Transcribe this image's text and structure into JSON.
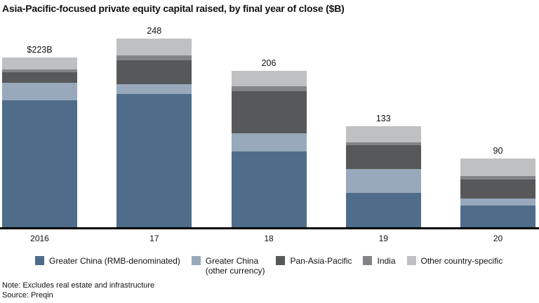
{
  "title": "Asia-Pacific-focused private equity capital raised, by final year of close ($B)",
  "note": "Note: Excludes real estate and infrastructure",
  "source": "Source: Preqin",
  "colors": {
    "rmb": "#4f6d8a",
    "other_currency": "#97a9ba",
    "pan_asia_pacific": "#57585a",
    "india": "#828487",
    "other_country": "#bfc0c2",
    "axis": "#000000"
  },
  "chart_data": {
    "type": "bar",
    "stacked": true,
    "title": "Asia-Pacific-focused private equity capital raised, by final year of close ($B)",
    "categories": [
      "2016",
      "17",
      "18",
      "19",
      "20"
    ],
    "totals": [
      223,
      248,
      206,
      133,
      90
    ],
    "totals_labels": [
      "$223B",
      "248",
      "206",
      "133",
      "90"
    ],
    "series": [
      {
        "name": "Greater China (RMB-denominated)",
        "color_key": "rmb",
        "values": [
          167,
          175,
          100,
          45,
          29
        ]
      },
      {
        "name": "Greater China (other currency)",
        "color_key": "other_currency",
        "values": [
          23,
          13,
          24,
          32,
          9
        ]
      },
      {
        "name": "Pan-Asia-Pacific",
        "color_key": "pan_asia_pacific",
        "values": [
          14,
          32,
          55,
          31,
          25
        ]
      },
      {
        "name": "India",
        "color_key": "india",
        "values": [
          4,
          6,
          6,
          4,
          4
        ]
      },
      {
        "name": "Other country-specific",
        "color_key": "other_country",
        "values": [
          15,
          22,
          21,
          21,
          23
        ]
      }
    ],
    "ylim": [
      0,
      248
    ],
    "y_axis_shown": false,
    "grid": false,
    "legend_position": "bottom",
    "legend": [
      {
        "lines": [
          "Greater China (RMB-denominated)"
        ],
        "color_key": "rmb"
      },
      {
        "lines": [
          "Greater China",
          "(other currency)"
        ],
        "color_key": "other_currency"
      },
      {
        "lines": [
          "Pan-Asia-Pacific"
        ],
        "color_key": "pan_asia_pacific"
      },
      {
        "lines": [
          "India"
        ],
        "color_key": "india"
      },
      {
        "lines": [
          "Other country-specific"
        ],
        "color_key": "other_country"
      }
    ]
  }
}
